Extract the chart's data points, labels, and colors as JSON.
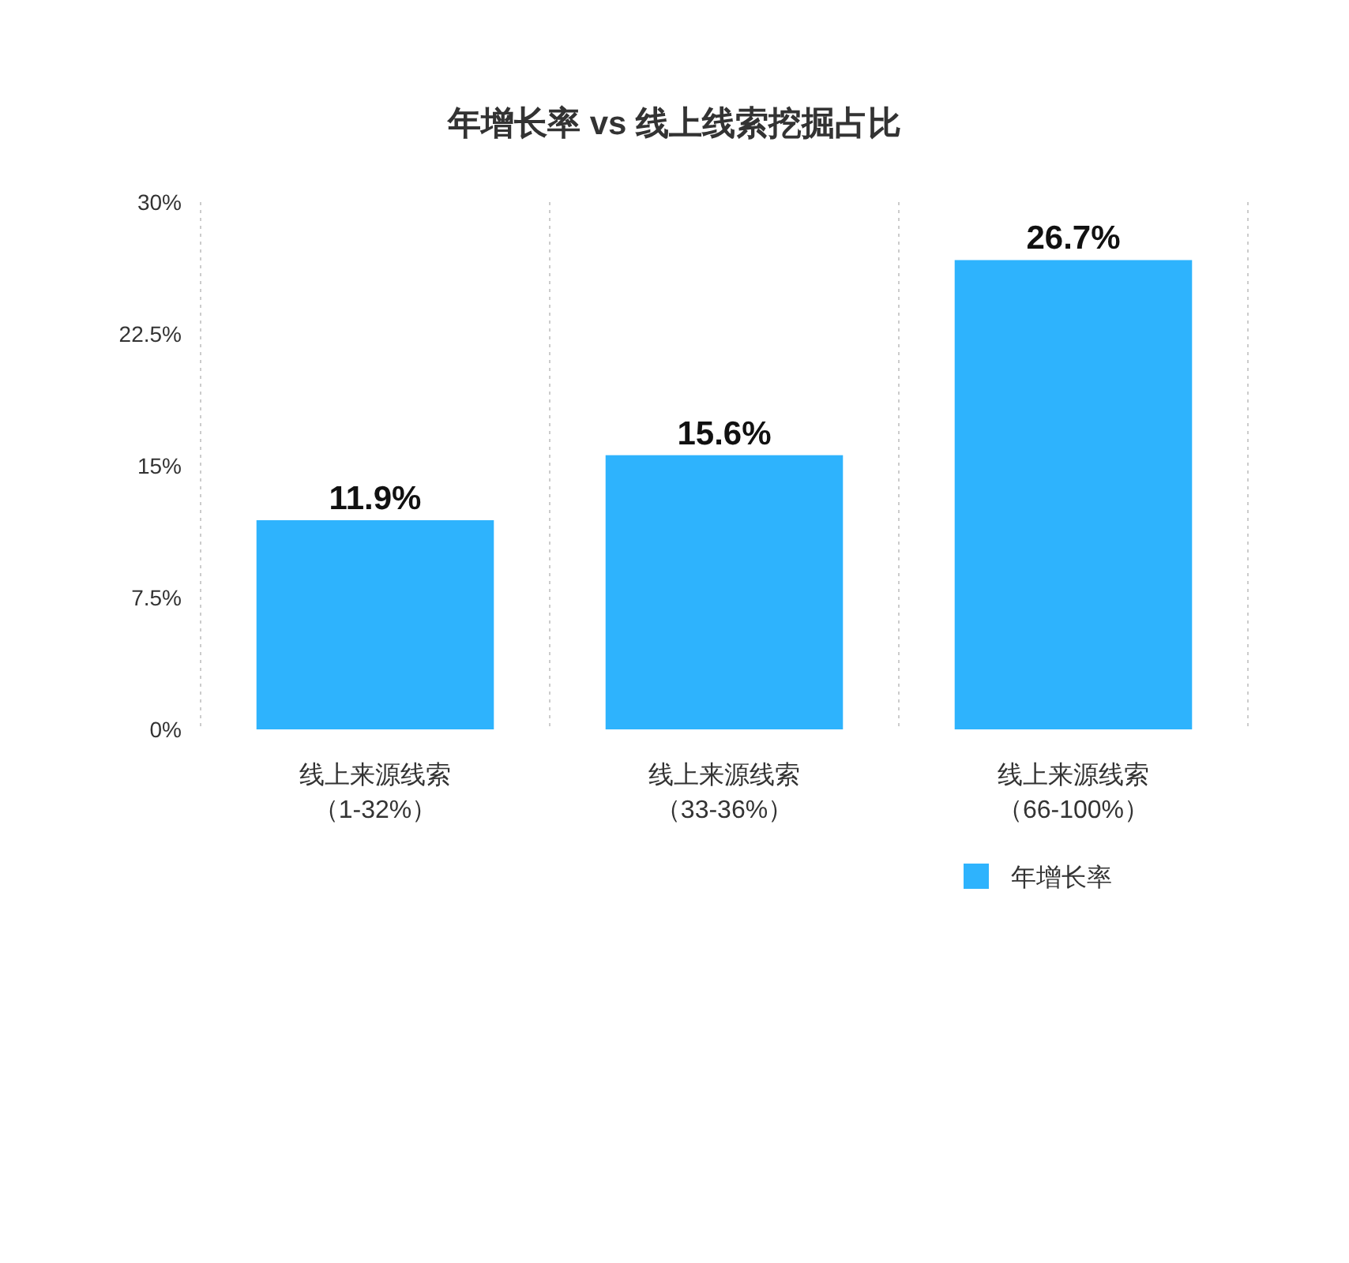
{
  "chart_data": {
    "type": "bar",
    "title": "年增长率 vs 线上线索挖掘占比",
    "categories": [
      "线上来源线索（1-32%）",
      "线上来源线索（33-36%）",
      "线上来源线索（66-100%）"
    ],
    "series": [
      {
        "name": "年增长率",
        "color": "#2eb3fd",
        "values": [
          11.9,
          15.6,
          26.7
        ],
        "value_labels": [
          "11.9%",
          "15.6%",
          "26.7%"
        ]
      }
    ],
    "ylim": [
      0,
      30
    ],
    "yticks": [
      {
        "value": 0,
        "label": "0%"
      },
      {
        "value": 7.5,
        "label": "7.5%"
      },
      {
        "value": 15,
        "label": "15%"
      },
      {
        "value": 22.5,
        "label": "22.5%"
      },
      {
        "value": 30,
        "label": "30%"
      }
    ],
    "grid": "x",
    "legend": "bottom"
  }
}
